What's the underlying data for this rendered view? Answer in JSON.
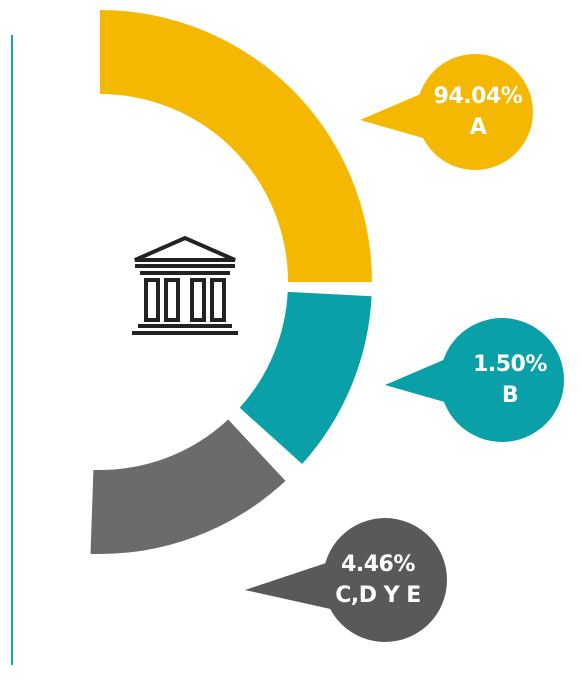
{
  "segments": [
    {
      "value_label": "94.04%",
      "label": "A"
    },
    {
      "value_label": "1.50%",
      "label": "B"
    },
    {
      "value_label": "4.46%",
      "label": "C,D Y E"
    }
  ]
}
